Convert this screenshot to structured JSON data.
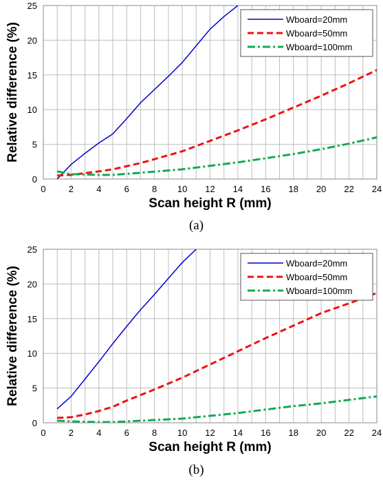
{
  "chart_data": [
    {
      "type": "line",
      "caption": "(a)",
      "xlabel": "Scan height R (mm)",
      "ylabel": "Relative difference (%)",
      "xlim": [
        0,
        24
      ],
      "ylim": [
        0,
        25
      ],
      "xticks": [
        0,
        2,
        4,
        6,
        8,
        10,
        12,
        14,
        16,
        18,
        20,
        22,
        24
      ],
      "yticks": [
        0,
        5,
        10,
        15,
        20,
        25
      ],
      "grid": true,
      "legend_position": "top-right",
      "series": [
        {
          "name": "Wboard=20mm",
          "color": "#0000cc",
          "style": "solid",
          "x": [
            1,
            2,
            3,
            4,
            5,
            6,
            7,
            8,
            9,
            10,
            11,
            12,
            13,
            14
          ],
          "y": [
            0,
            2.1,
            3.7,
            5.2,
            6.5,
            8.7,
            11.0,
            12.9,
            14.8,
            16.8,
            19.2,
            21.6,
            23.4,
            25.0
          ]
        },
        {
          "name": "Wboard=50mm",
          "color": "#ee1111",
          "style": "dashed",
          "x": [
            1,
            2,
            4,
            5,
            7,
            10,
            12,
            14,
            16,
            18,
            20,
            22,
            24
          ],
          "y": [
            0.5,
            0.6,
            1.1,
            1.4,
            2.3,
            4.0,
            5.5,
            7.0,
            8.6,
            10.3,
            12.0,
            13.8,
            15.7
          ]
        },
        {
          "name": "Wboard=100mm",
          "color": "#11aa55",
          "style": "dashdot",
          "x": [
            1,
            2,
            4,
            5,
            7,
            10,
            12,
            14,
            16,
            18,
            20,
            22,
            24
          ],
          "y": [
            1.1,
            0.7,
            0.6,
            0.6,
            0.9,
            1.4,
            1.9,
            2.4,
            3.0,
            3.6,
            4.3,
            5.1,
            6.0
          ]
        }
      ]
    },
    {
      "type": "line",
      "caption": "(b)",
      "xlabel": "Scan height R (mm)",
      "ylabel": "Relative difference (%)",
      "xlim": [
        0,
        24
      ],
      "ylim": [
        0,
        25
      ],
      "xticks": [
        0,
        2,
        4,
        6,
        8,
        10,
        12,
        14,
        16,
        18,
        20,
        22,
        24
      ],
      "yticks": [
        0,
        5,
        10,
        15,
        20,
        25
      ],
      "grid": true,
      "legend_position": "top-right",
      "series": [
        {
          "name": "Wboard=20mm",
          "color": "#0000cc",
          "style": "solid",
          "x": [
            1,
            2,
            3,
            4,
            5,
            6,
            7,
            8,
            9,
            10,
            11
          ],
          "y": [
            2.0,
            3.8,
            6.3,
            8.8,
            11.4,
            13.9,
            16.3,
            18.5,
            20.8,
            23.1,
            25.0
          ]
        },
        {
          "name": "Wboard=50mm",
          "color": "#ee1111",
          "style": "dashed",
          "x": [
            1,
            2,
            3,
            4,
            5,
            6,
            7,
            8,
            10,
            12,
            14,
            16,
            18,
            20,
            22,
            24
          ],
          "y": [
            0.7,
            0.8,
            1.2,
            1.7,
            2.3,
            3.2,
            4.0,
            4.8,
            6.5,
            8.4,
            10.3,
            12.2,
            14.0,
            15.8,
            17.2,
            18.7
          ]
        },
        {
          "name": "Wboard=100mm",
          "color": "#11aa55",
          "style": "dashdot",
          "x": [
            1,
            2,
            4,
            5,
            7,
            10,
            12,
            14,
            16,
            18,
            20,
            22,
            24
          ],
          "y": [
            0.3,
            0.2,
            0.1,
            0.1,
            0.3,
            0.6,
            1.0,
            1.4,
            1.9,
            2.4,
            2.8,
            3.3,
            3.8
          ]
        }
      ]
    }
  ]
}
